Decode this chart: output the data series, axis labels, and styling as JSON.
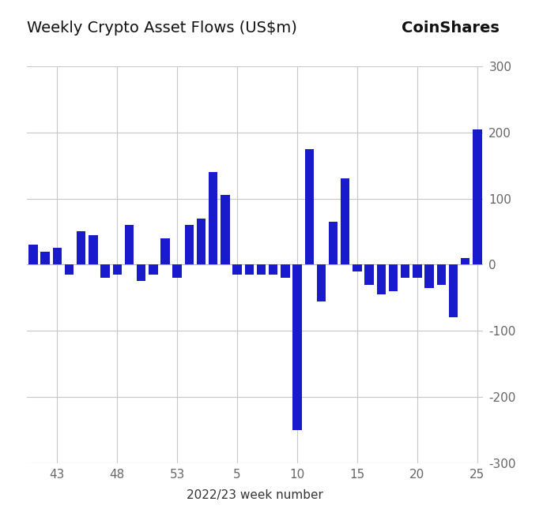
{
  "title": "Weekly Crypto Asset Flows (US$m)",
  "brand": "CoinShares",
  "xlabel": "2022/23 week number",
  "bar_color": "#1a1acd",
  "background_color": "#ffffff",
  "grid_color": "#c8c8c8",
  "ylim": [
    -300,
    300
  ],
  "yticks": [
    -300,
    -200,
    -100,
    0,
    100,
    200,
    300
  ],
  "xtick_labels": [
    "43",
    "48",
    "53",
    "5",
    "10",
    "15",
    "20",
    "25"
  ],
  "week_numbers": [
    41,
    42,
    43,
    44,
    45,
    46,
    47,
    48,
    49,
    50,
    51,
    52,
    53,
    1,
    2,
    3,
    4,
    5,
    6,
    7,
    8,
    9,
    10,
    11,
    12,
    13,
    14,
    15,
    16,
    17,
    18,
    19,
    20,
    21,
    22,
    23,
    24,
    25
  ],
  "values": [
    30,
    20,
    25,
    -15,
    50,
    45,
    -20,
    -15,
    60,
    -25,
    -15,
    40,
    -20,
    60,
    70,
    140,
    105,
    -15,
    -15,
    -15,
    -15,
    -20,
    -250,
    175,
    -55,
    65,
    130,
    -10,
    -30,
    -45,
    -40,
    -20,
    -20,
    -35,
    -30,
    -80,
    10,
    205
  ]
}
